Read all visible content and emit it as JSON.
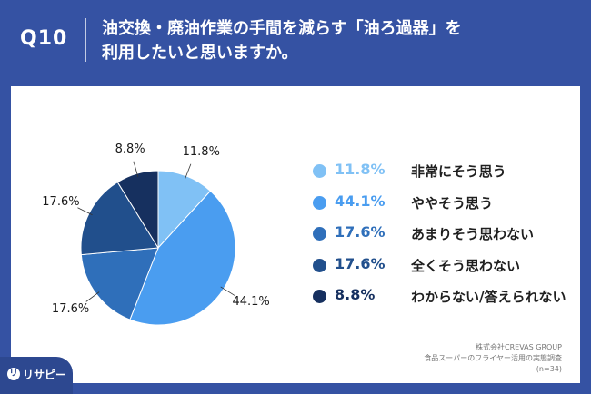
{
  "header": {
    "q_number": "Q10",
    "question_line1": "油交換・廃油作業の手間を減らす「油ろ過器」を",
    "question_line2": "利用したいと思いますか。"
  },
  "chart_data": {
    "type": "pie",
    "slices": [
      {
        "label": "非常にそう思う",
        "value": 11.8,
        "display": "11.8%",
        "color": "#80c1f5"
      },
      {
        "label": "ややそう思う",
        "value": 44.1,
        "display": "44.1%",
        "color": "#4a9df0"
      },
      {
        "label": "あまりそう思わない",
        "value": 17.6,
        "display": "17.6%",
        "color": "#2f6fba"
      },
      {
        "label": "全くそう思わない",
        "value": 17.6,
        "display": "17.6%",
        "color": "#214f8c"
      },
      {
        "label": "わからない/答えられない",
        "value": 8.8,
        "display": "8.8%",
        "color": "#16305f"
      }
    ],
    "legend_position": "right"
  },
  "credit": {
    "line1": "株式会社CREVAS GROUP",
    "line2": "食品スーパーのフライヤー活用の実態調査",
    "line3": "(n=34)"
  },
  "logo": {
    "icon_text": "リ",
    "text": "リサピー"
  }
}
